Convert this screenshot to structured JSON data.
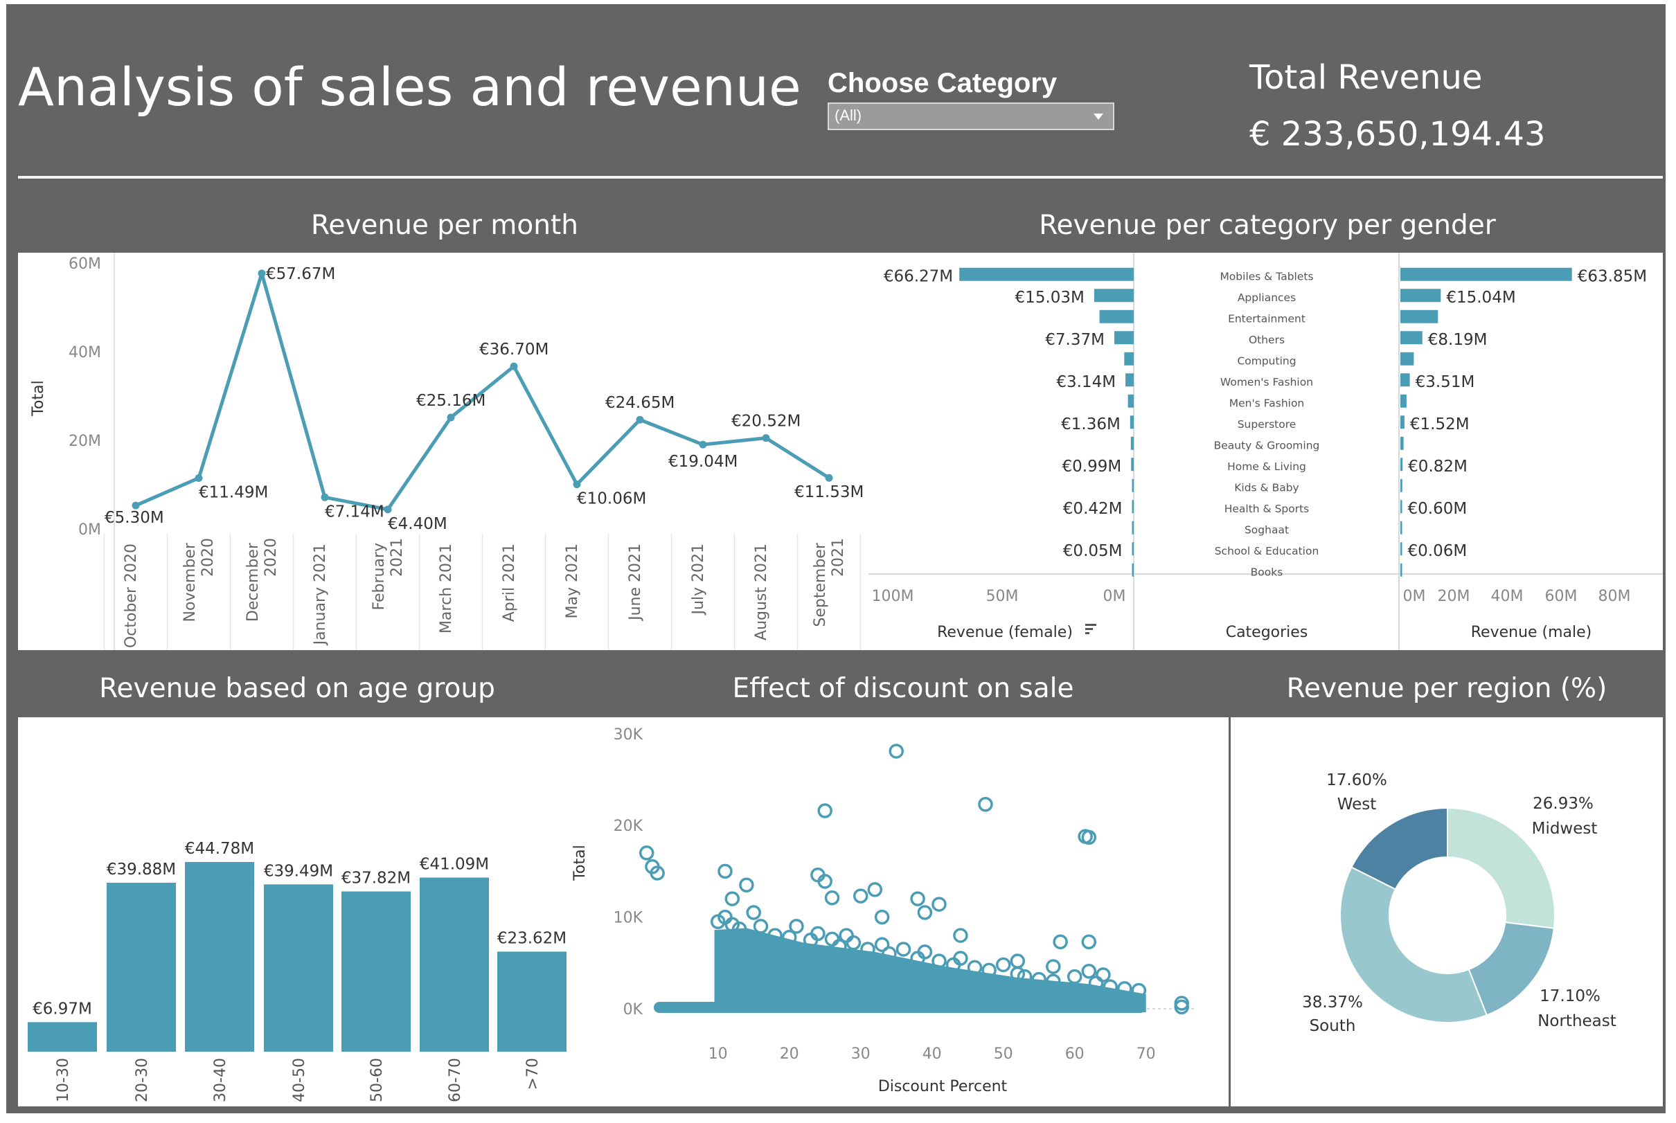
{
  "header": {
    "title": "Analysis of sales and revenue",
    "filter_label": "Choose Category",
    "filter_value": "(All)",
    "kpi_label": "Total Revenue",
    "kpi_value": "€ 233,650,194.43"
  },
  "sections": {
    "month": "Revenue per month",
    "gender": "Revenue per category per gender",
    "age": "Revenue based on age group",
    "discount": "Effect of discount on sale",
    "region": "Revenue per region (%)"
  },
  "colors": {
    "bar": "#4a9db5",
    "line": "#4a9db5",
    "header_bg": "#646464",
    "region_west": "#4e82a3",
    "region_midwest": "#c2e2da",
    "region_northeast": "#7fb4c4",
    "region_south": "#98c8cd"
  },
  "chart_data": [
    {
      "id": "revenue_per_month",
      "type": "line",
      "title": "Revenue per month",
      "ylabel": "Total",
      "ylim": [
        0,
        60
      ],
      "y_ticks": [
        "0M",
        "20M",
        "40M",
        "60M"
      ],
      "categories": [
        "October 2020",
        "November 2020",
        "December 2020",
        "January 2021",
        "February 2021",
        "March 2021",
        "April 2021",
        "May 2021",
        "June 2021",
        "July 2021",
        "August 2021",
        "September 2021"
      ],
      "values": [
        5.3,
        11.49,
        57.67,
        7.14,
        4.4,
        25.16,
        36.7,
        10.06,
        24.65,
        19.04,
        20.52,
        11.53
      ],
      "labels": [
        "€5.30M",
        "€11.49M",
        "€57.67M",
        "€7.14M",
        "€4.40M",
        "€25.16M",
        "€36.70M",
        "€10.06M",
        "€24.65M",
        "€19.04M",
        "€20.52M",
        "€11.53M"
      ]
    },
    {
      "id": "revenue_per_category_gender",
      "type": "bar",
      "title": "Revenue per category per gender",
      "categories": [
        "Mobiles & Tablets",
        "Appliances",
        "Entertainment",
        "Others",
        "Computing",
        "Women's Fashion",
        "Men's Fashion",
        "Superstore",
        "Beauty & Grooming",
        "Home & Living",
        "Kids & Baby",
        "Health & Sports",
        "Soghaat",
        "School & Education",
        "Books"
      ],
      "category_axis_label": "Categories",
      "female": {
        "axis_label": "Revenue (female)",
        "ticks": [
          "100M",
          "50M",
          "0M"
        ],
        "xlim": [
          0,
          100
        ],
        "values": [
          66.27,
          15.03,
          13.0,
          7.37,
          3.6,
          3.14,
          2.2,
          1.36,
          1.1,
          0.99,
          0.6,
          0.42,
          0.25,
          0.05,
          0.03
        ],
        "labels": [
          "€66.27M",
          "€15.03M",
          "",
          "€7.37M",
          "",
          "€3.14M",
          "",
          "€1.36M",
          "",
          "€0.99M",
          "",
          "€0.42M",
          "",
          "€0.05M",
          ""
        ]
      },
      "male": {
        "axis_label": "Revenue (male)",
        "ticks": [
          "0M",
          "20M",
          "40M",
          "60M",
          "80M"
        ],
        "xlim": [
          0,
          80
        ],
        "values": [
          63.85,
          15.04,
          14.0,
          8.19,
          5.0,
          3.51,
          2.3,
          1.52,
          1.2,
          0.82,
          0.7,
          0.6,
          0.3,
          0.06,
          0.05
        ],
        "labels": [
          "€63.85M",
          "€15.04M",
          "",
          "€8.19M",
          "",
          "€3.51M",
          "",
          "€1.52M",
          "",
          "€0.82M",
          "",
          "€0.60M",
          "",
          "€0.06M",
          ""
        ]
      }
    },
    {
      "id": "revenue_per_age_group",
      "type": "bar",
      "title": "Revenue based on age group",
      "categories": [
        "10-30",
        "20-30",
        "30-40",
        "40-50",
        "50-60",
        "60-70",
        ">70"
      ],
      "values": [
        6.97,
        39.88,
        44.78,
        39.49,
        37.82,
        41.09,
        23.62
      ],
      "labels": [
        "€6.97M",
        "€39.88M",
        "€44.78M",
        "€39.49M",
        "€37.82M",
        "€41.09M",
        "€23.62M"
      ],
      "ylim": [
        0,
        50
      ]
    },
    {
      "id": "effect_of_discount",
      "type": "scatter",
      "title": "Effect of discount on sale",
      "xlabel": "Discount Percent",
      "ylabel": "Total",
      "xlim": [
        0,
        75
      ],
      "ylim": [
        0,
        30000
      ],
      "x_ticks": [
        "10",
        "20",
        "30",
        "40",
        "50",
        "60",
        "70"
      ],
      "y_ticks": [
        "0K",
        "10K",
        "20K",
        "30K"
      ],
      "outliers": [
        [
          35,
          28100
        ],
        [
          47.5,
          22300
        ],
        [
          25,
          21600
        ],
        [
          61.5,
          18800
        ],
        [
          62,
          18700
        ],
        [
          0,
          17000
        ],
        [
          0.8,
          15500
        ],
        [
          1.5,
          14800
        ],
        [
          11,
          15000
        ],
        [
          24,
          14600
        ],
        [
          25,
          13900
        ],
        [
          32,
          13000
        ],
        [
          30,
          12300
        ],
        [
          38,
          12000
        ],
        [
          41,
          11400
        ],
        [
          26,
          12100
        ],
        [
          58,
          7300
        ],
        [
          62,
          7300
        ],
        [
          75,
          600
        ],
        [
          75,
          200
        ]
      ]
    },
    {
      "id": "revenue_per_region",
      "type": "pie",
      "title": "Revenue per region (%)",
      "slices": [
        {
          "name": "Midwest",
          "value": 26.93,
          "label": "26.93%"
        },
        {
          "name": "Northeast",
          "value": 17.1,
          "label": "17.10%"
        },
        {
          "name": "South",
          "value": 38.37,
          "label": "38.37%"
        },
        {
          "name": "West",
          "value": 17.6,
          "label": "17.60%"
        }
      ]
    }
  ]
}
